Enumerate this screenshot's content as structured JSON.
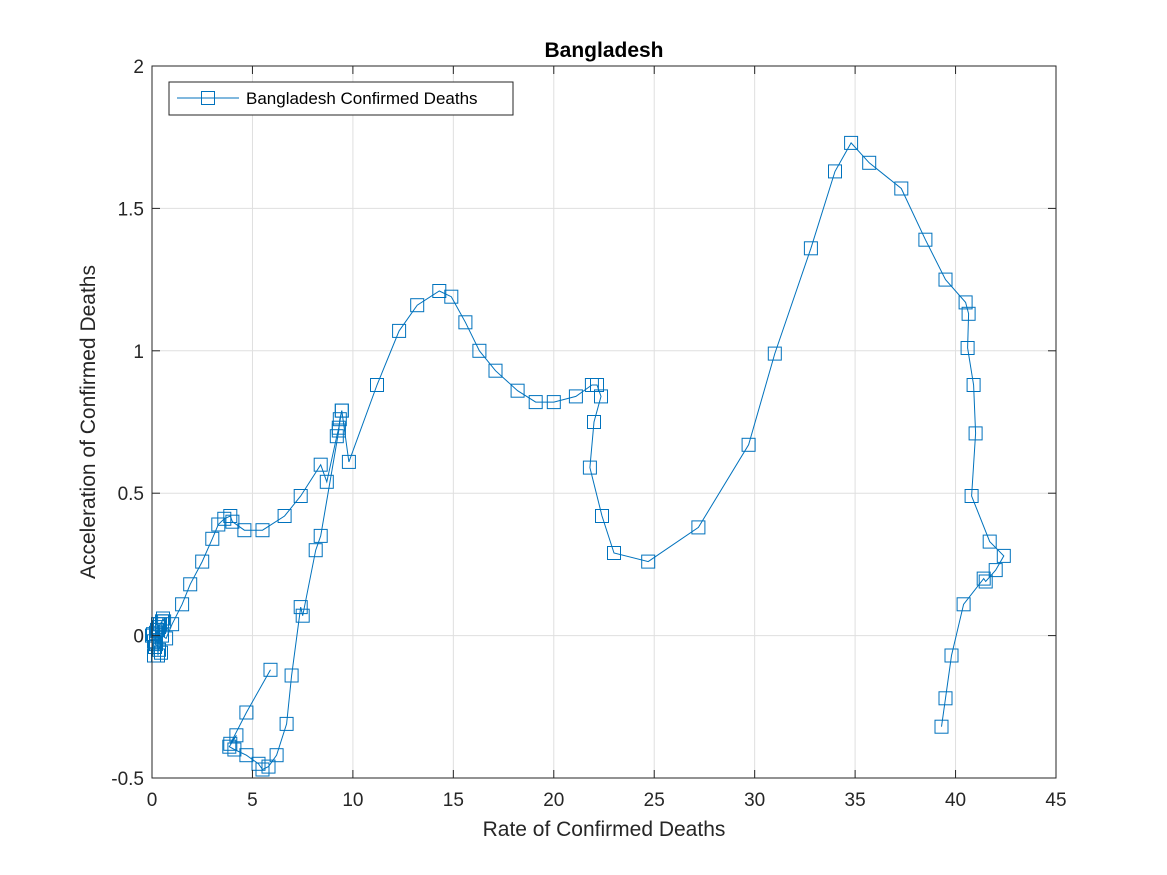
{
  "chart_data": {
    "type": "line",
    "title": "Bangladesh",
    "xlabel": "Rate of Confirmed Deaths",
    "ylabel": "Acceleration of Confirmed Deaths",
    "xlim": [
      0,
      45
    ],
    "ylim": [
      -0.5,
      2
    ],
    "xticks": [
      0,
      5,
      10,
      15,
      20,
      25,
      30,
      35,
      40,
      45
    ],
    "yticks": [
      -0.5,
      0,
      0.5,
      1,
      1.5,
      2
    ],
    "xtick_labels": [
      "0",
      "5",
      "10",
      "15",
      "20",
      "25",
      "30",
      "35",
      "40",
      "45"
    ],
    "ytick_labels": [
      "-0.5",
      "0",
      "0.5",
      "1",
      "1.5",
      "2"
    ],
    "grid": true,
    "legend_position": "top-left",
    "series_color": "#0072bd",
    "marker": "square",
    "series": [
      {
        "name": "Bangladesh Confirmed Deaths",
        "x": [
          0,
          0.05,
          0.1,
          0.15,
          0.2,
          0.1,
          0.25,
          0.3,
          0.35,
          0.3,
          0.45,
          0.5,
          0.55,
          0.6,
          0.55,
          0.5,
          0.4,
          0.3,
          0.2,
          0.35,
          0.5,
          0.7,
          1.0,
          1.5,
          1.9,
          2.5,
          3.0,
          3.3,
          3.6,
          3.9,
          4.0,
          4.6,
          5.5,
          6.6,
          7.4,
          8.4,
          8.7,
          9.2,
          9.3,
          9.45,
          9.8,
          11.2,
          12.3,
          13.2,
          14.3,
          14.9,
          15.6,
          16.3,
          17.1,
          18.2,
          19.1,
          20.0,
          21.1,
          21.9,
          22.15,
          22.35,
          22.0,
          21.8,
          22.4,
          23.0,
          24.7,
          27.2,
          29.7,
          31.0,
          32.8,
          34.0,
          34.8,
          35.7,
          37.3,
          38.5,
          39.5,
          40.5,
          40.65,
          40.6,
          40.9,
          41.0,
          40.8,
          41.7,
          42.4,
          42.0,
          41.5,
          41.4,
          40.4,
          39.8,
          39.5,
          39.3
        ],
        "y": [
          0.0,
          0.005,
          -0.07,
          -0.04,
          0.01,
          -0.02,
          0.02,
          -0.07,
          0.03,
          0.04,
          -0.06,
          0.05,
          0.06,
          0.05,
          0.06,
          0.05,
          0.04,
          0.02,
          -0.03,
          -0.05,
          0.0,
          -0.01,
          0.04,
          0.11,
          0.18,
          0.26,
          0.34,
          0.39,
          0.41,
          0.42,
          0.4,
          0.37,
          0.37,
          0.42,
          0.49,
          0.6,
          0.54,
          0.7,
          0.73,
          0.79,
          0.61,
          0.88,
          1.07,
          1.16,
          1.21,
          1.19,
          1.1,
          1.0,
          0.93,
          0.86,
          0.82,
          0.82,
          0.84,
          0.88,
          0.88,
          0.84,
          0.75,
          0.59,
          0.42,
          0.29,
          0.26,
          0.38,
          0.67,
          0.99,
          1.36,
          1.63,
          1.73,
          1.66,
          1.57,
          1.39,
          1.25,
          1.17,
          1.13,
          1.01,
          0.88,
          0.71,
          0.49,
          0.33,
          0.28,
          0.23,
          0.19,
          0.2,
          0.11,
          -0.07,
          -0.22,
          -0.32
        ]
      },
      {
        "name": "",
        "x": [
          9.45,
          9.35,
          9.3,
          8.4,
          8.15,
          7.5,
          7.4,
          6.95,
          6.7,
          6.2,
          5.8,
          5.5,
          5.3,
          4.7,
          4.1,
          3.85,
          4.2,
          3.9,
          4.7,
          5.9
        ],
        "y": [
          0.79,
          0.76,
          0.72,
          0.35,
          0.3,
          0.07,
          0.1,
          -0.14,
          -0.31,
          -0.42,
          -0.46,
          -0.47,
          -0.45,
          -0.42,
          -0.4,
          -0.39,
          -0.35,
          -0.38,
          -0.27,
          -0.12
        ]
      }
    ]
  }
}
